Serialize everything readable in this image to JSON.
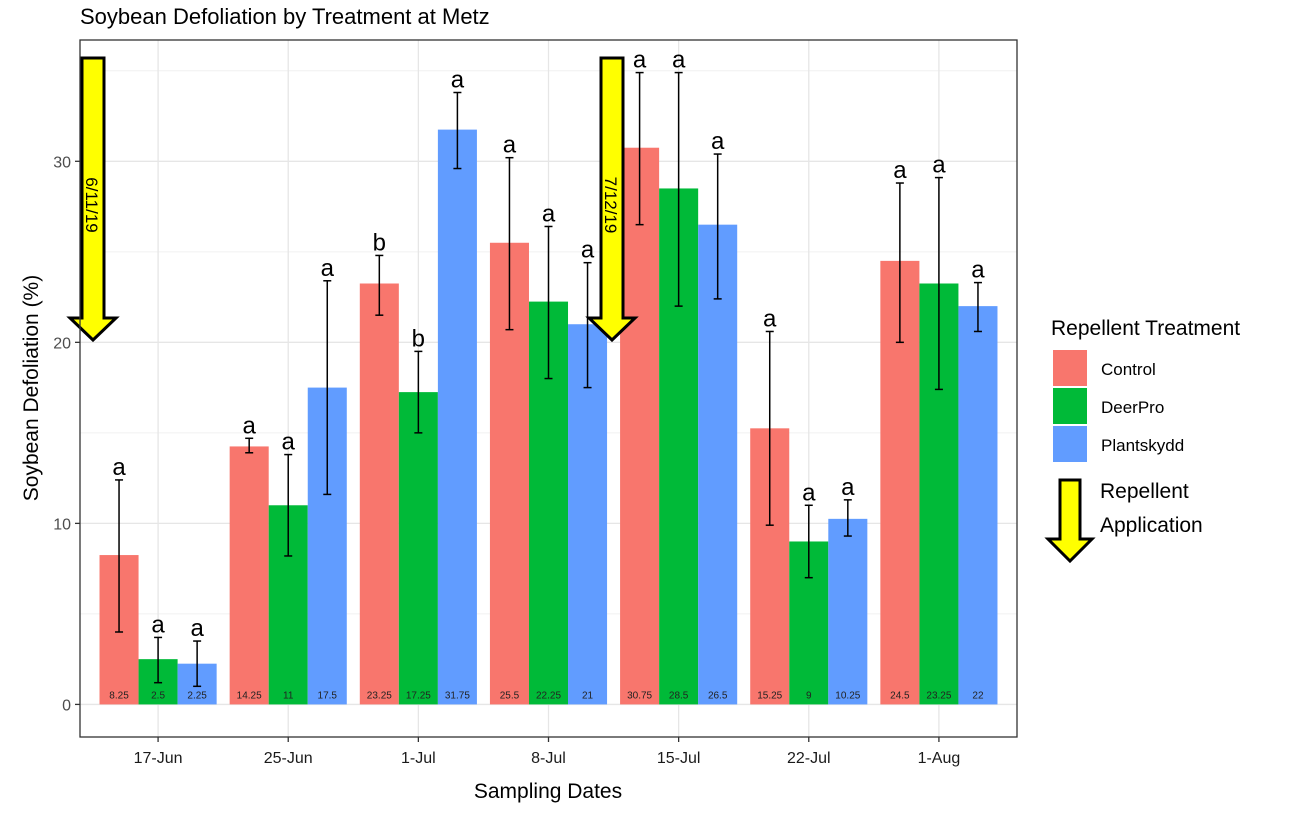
{
  "chart_data": {
    "type": "bar",
    "title": "Soybean Defoliation by Treatment at Metz",
    "xlabel": "Sampling Dates",
    "ylabel": "Soybean Defoliation (%)",
    "ylim": [
      -1.8,
      36.7
    ],
    "yticks": [
      0,
      10,
      20,
      30
    ],
    "grid": true,
    "legend_position": "right",
    "legend_title": "Repellent Treatment",
    "categories": [
      "17-Jun",
      "25-Jun",
      "1-Jul",
      "8-Jul",
      "15-Jul",
      "22-Jul",
      "1-Aug"
    ],
    "series": [
      {
        "name": "Control",
        "color": "#F8766D",
        "values": [
          8.25,
          14.25,
          23.25,
          25.5,
          30.75,
          15.25,
          24.5
        ],
        "value_labels": [
          "8.25",
          "14.25",
          "23.25",
          "25.5",
          "30.75",
          "15.25",
          "24.5"
        ],
        "error_low": [
          4.0,
          13.9,
          21.5,
          20.7,
          26.5,
          9.9,
          20.0
        ],
        "error_high": [
          12.4,
          14.7,
          24.8,
          30.2,
          34.9,
          20.6,
          28.8
        ],
        "letters": [
          "a",
          "a",
          "b",
          "a",
          "a",
          "a",
          "a"
        ]
      },
      {
        "name": "DeerPro",
        "color": "#00BA38",
        "values": [
          2.5,
          11,
          17.25,
          22.25,
          28.5,
          9,
          23.25
        ],
        "value_labels": [
          "2.5",
          "11",
          "17.25",
          "22.25",
          "28.5",
          "9",
          "23.25"
        ],
        "error_low": [
          1.2,
          8.2,
          15.0,
          18.0,
          22.0,
          7.0,
          17.4
        ],
        "error_high": [
          3.7,
          13.8,
          19.5,
          26.4,
          34.9,
          11.0,
          29.1
        ],
        "letters": [
          "a",
          "a",
          "b",
          "a",
          "a",
          "a",
          "a"
        ]
      },
      {
        "name": "Plantskydd",
        "color": "#619CFF",
        "values": [
          2.25,
          17.5,
          31.75,
          21,
          26.5,
          10.25,
          22
        ],
        "value_labels": [
          "2.25",
          "17.5",
          "31.75",
          "21",
          "26.5",
          "10.25",
          "22"
        ],
        "error_low": [
          1.0,
          11.6,
          29.6,
          17.5,
          22.4,
          9.3,
          20.6
        ],
        "error_high": [
          3.5,
          23.4,
          33.8,
          24.4,
          30.4,
          11.3,
          23.3
        ],
        "letters": [
          "a",
          "a",
          "a",
          "a",
          "a",
          "a",
          "a"
        ]
      }
    ],
    "annotations": [
      {
        "type": "arrow",
        "label": "6/11/19",
        "color": "#FFFF00",
        "near_category": "17-Jun",
        "side": "before"
      },
      {
        "type": "arrow",
        "label": "7/12/19",
        "color": "#FFFF00",
        "near_category": "8-Jul",
        "side": "after"
      }
    ],
    "arrow_legend": {
      "line1": "Repellent",
      "line2": "Application",
      "color": "#FFFF00"
    }
  }
}
